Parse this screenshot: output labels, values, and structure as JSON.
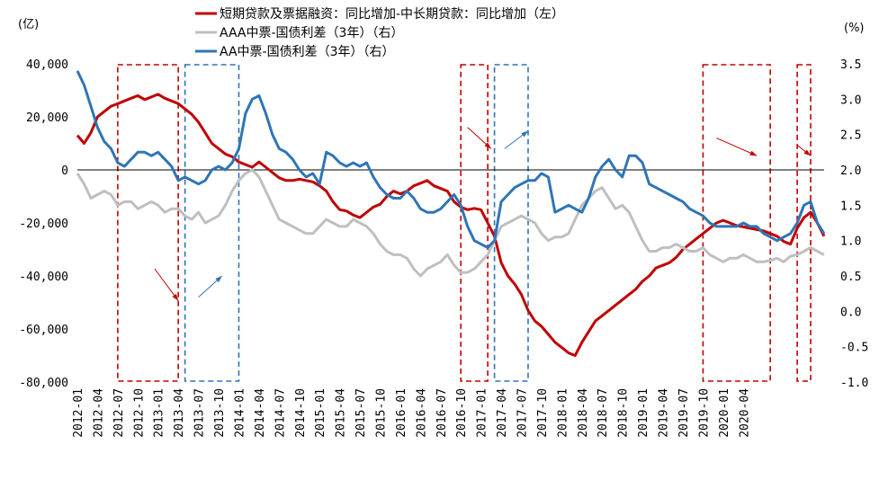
{
  "chart_data": {
    "type": "line",
    "left_unit": "(亿)",
    "right_unit": "(%)",
    "left_ylim": [
      -80000,
      40000
    ],
    "right_ylim": [
      -1.0,
      3.5
    ],
    "left_ticks": [
      "40,000",
      "20,000",
      "0",
      "-20,000",
      "-40,000",
      "-60,000",
      "-80,000"
    ],
    "right_ticks": [
      "3.5",
      "3.0",
      "2.5",
      "2.0",
      "1.5",
      "1.0",
      "0.5",
      "0.0",
      "-0.5",
      "-1.0"
    ],
    "x_tick_labels": [
      "2012-01",
      "2012-04",
      "2012-07",
      "2012-10",
      "2013-01",
      "2013-04",
      "2013-07",
      "2013-10",
      "2014-01",
      "2014-04",
      "2014-07",
      "2014-10",
      "2015-01",
      "2015-04",
      "2015-07",
      "2015-10",
      "2016-01",
      "2016-04",
      "2016-07",
      "2016-10",
      "2017-01",
      "2017-04",
      "2017-07",
      "2017-10",
      "2018-01",
      "2018-04",
      "2018-07",
      "2018-10",
      "2019-01",
      "2019-04",
      "2019-07",
      "2019-10",
      "2020-01",
      "2020-04"
    ],
    "legend": [
      {
        "name": "短期贷款及票据融资：同比增加-中长期贷款：同比增加（左）",
        "color": "#C00000"
      },
      {
        "name": "AAA中票-国债利差（3年）（右）",
        "color": "#BFBFBF"
      },
      {
        "name": "AA中票-国债利差（3年）（右）",
        "color": "#2E75B6"
      }
    ],
    "series": [
      {
        "name": "短期贷款及票据融资：同比增加-中长期贷款：同比增加（左）",
        "axis": "left",
        "color": "#C00000",
        "values": [
          13000,
          10000,
          14000,
          20000,
          22000,
          24000,
          25000,
          26000,
          27000,
          28000,
          26500,
          27500,
          28500,
          27000,
          26000,
          25000,
          23000,
          21000,
          18000,
          14000,
          10000,
          8000,
          6000,
          5000,
          3000,
          2000,
          1000,
          3000,
          1000,
          -1000,
          -3000,
          -4000,
          -4000,
          -3500,
          -4000,
          -4500,
          -6000,
          -8000,
          -12000,
          -15000,
          -15500,
          -17000,
          -18000,
          -16000,
          -14000,
          -13000,
          -10000,
          -8000,
          -9000,
          -8000,
          -6000,
          -5000,
          -4000,
          -6000,
          -7000,
          -8000,
          -12000,
          -14000,
          -15000,
          -14500,
          -15000,
          -20000,
          -25000,
          -35000,
          -40000,
          -43000,
          -47000,
          -53000,
          -57000,
          -59000,
          -62000,
          -65000,
          -67000,
          -69000,
          -70000,
          -65000,
          -61000,
          -57000,
          -55000,
          -53000,
          -51000,
          -49000,
          -47000,
          -45000,
          -42000,
          -40000,
          -37000,
          -36000,
          -35000,
          -33000,
          -30000,
          -28000,
          -26000,
          -24000,
          -22000,
          -20000,
          -19000,
          -20000,
          -21000,
          -21500,
          -22000,
          -22500,
          -23000,
          -24000,
          -25000,
          -27000,
          -28000,
          -22000,
          -18000,
          -16000,
          -20000,
          -25000
        ]
      },
      {
        "name": "AAA中票-国债利差（3年）（右）",
        "axis": "right",
        "color": "#BFBFBF",
        "values": [
          1.95,
          1.8,
          1.6,
          1.65,
          1.7,
          1.65,
          1.5,
          1.55,
          1.55,
          1.45,
          1.5,
          1.55,
          1.5,
          1.4,
          1.45,
          1.45,
          1.35,
          1.3,
          1.4,
          1.25,
          1.3,
          1.35,
          1.5,
          1.7,
          1.85,
          1.95,
          2.0,
          1.9,
          1.7,
          1.5,
          1.3,
          1.25,
          1.2,
          1.15,
          1.1,
          1.1,
          1.2,
          1.3,
          1.25,
          1.2,
          1.2,
          1.3,
          1.25,
          1.2,
          1.1,
          0.95,
          0.85,
          0.8,
          0.8,
          0.75,
          0.6,
          0.5,
          0.6,
          0.65,
          0.7,
          0.8,
          0.65,
          0.55,
          0.55,
          0.6,
          0.7,
          0.8,
          1.0,
          1.2,
          1.25,
          1.3,
          1.35,
          1.3,
          1.25,
          1.1,
          1.0,
          1.05,
          1.05,
          1.1,
          1.3,
          1.5,
          1.6,
          1.7,
          1.75,
          1.6,
          1.45,
          1.5,
          1.4,
          1.2,
          1.0,
          0.85,
          0.85,
          0.9,
          0.9,
          0.95,
          0.9,
          0.85,
          0.85,
          0.9,
          0.8,
          0.75,
          0.7,
          0.75,
          0.75,
          0.8,
          0.75,
          0.7,
          0.7,
          0.72,
          0.75,
          0.7,
          0.78,
          0.8,
          0.85,
          0.9,
          0.85,
          0.8
        ]
      },
      {
        "name": "AA中票-国债利差（3年）（右）",
        "axis": "right",
        "color": "#2E75B6",
        "values": [
          3.4,
          3.2,
          2.9,
          2.6,
          2.4,
          2.3,
          2.1,
          2.05,
          2.15,
          2.25,
          2.25,
          2.2,
          2.25,
          2.15,
          2.05,
          1.85,
          1.9,
          1.85,
          1.8,
          1.85,
          2.0,
          2.05,
          2.0,
          2.1,
          2.3,
          2.8,
          3.0,
          3.05,
          2.8,
          2.5,
          2.3,
          2.25,
          2.15,
          2.0,
          1.9,
          1.95,
          1.8,
          2.25,
          2.2,
          2.1,
          2.05,
          2.1,
          2.05,
          2.1,
          1.9,
          1.75,
          1.65,
          1.6,
          1.6,
          1.7,
          1.6,
          1.45,
          1.4,
          1.4,
          1.45,
          1.55,
          1.65,
          1.5,
          1.2,
          1.0,
          0.95,
          0.9,
          1.0,
          1.55,
          1.65,
          1.75,
          1.8,
          1.85,
          1.85,
          1.95,
          1.9,
          1.4,
          1.45,
          1.5,
          1.45,
          1.4,
          1.6,
          1.9,
          2.05,
          2.15,
          2.0,
          1.9,
          2.2,
          2.2,
          2.1,
          1.8,
          1.75,
          1.7,
          1.65,
          1.6,
          1.55,
          1.45,
          1.4,
          1.35,
          1.25,
          1.2,
          1.2,
          1.2,
          1.2,
          1.25,
          1.2,
          1.2,
          1.1,
          1.05,
          1.0,
          1.05,
          1.1,
          1.25,
          1.5,
          1.55,
          1.25,
          1.1
        ]
      }
    ],
    "boxes": [
      {
        "from": 6,
        "to": 15,
        "color": "#C00000"
      },
      {
        "from": 16,
        "to": 24,
        "color": "#2E75B6"
      },
      {
        "from": 57,
        "to": 61,
        "color": "#C00000"
      },
      {
        "from": 62,
        "to": 67,
        "color": "#2E75B6"
      },
      {
        "from": 93,
        "to": 103,
        "color": "#C00000"
      },
      {
        "from": 107,
        "to": 109,
        "color": "#C00000"
      }
    ],
    "arrows": [
      {
        "x1": 11.5,
        "y1": 0.6,
        "x2": 15,
        "y2": 0.15,
        "color": "#C00000"
      },
      {
        "x1": 18,
        "y1": 0.2,
        "x2": 21.5,
        "y2": 0.5,
        "color": "#2E75B6"
      },
      {
        "x1": 58,
        "y1": 2.6,
        "x2": 61.5,
        "y2": 2.3,
        "color": "#C00000"
      },
      {
        "x1": 63.5,
        "y1": 2.3,
        "x2": 67,
        "y2": 2.55,
        "color": "#2E75B6"
      },
      {
        "x1": 95,
        "y1": 2.45,
        "x2": 101,
        "y2": 2.2,
        "color": "#C00000"
      },
      {
        "x1": 107,
        "y1": 2.35,
        "x2": 109,
        "y2": 2.2,
        "color": "#C00000"
      }
    ]
  }
}
